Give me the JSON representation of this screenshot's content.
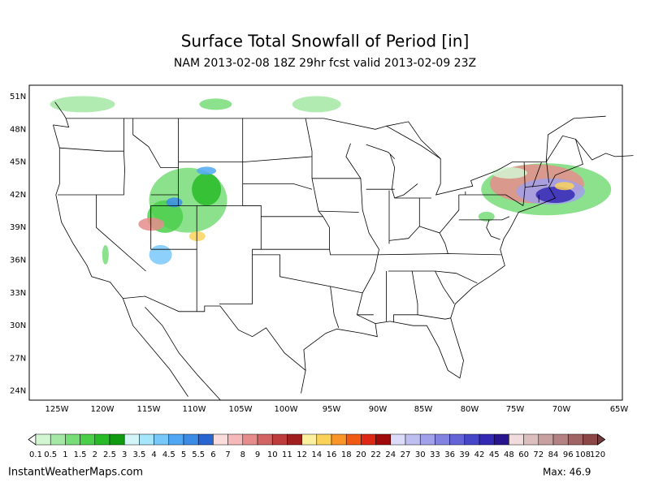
{
  "header": {
    "title": "Surface Total Snowfall of Period [in]",
    "subtitle": "NAM 2013-02-08 18Z 29hr fcst valid 2013-02-09 23Z"
  },
  "map": {
    "lat_labels": [
      "51N",
      "48N",
      "45N",
      "42N",
      "39N",
      "36N",
      "33N",
      "30N",
      "27N",
      "24N"
    ],
    "lon_labels": [
      "125W",
      "120W",
      "115W",
      "110W",
      "105W",
      "100W",
      "95W",
      "90W",
      "85W",
      "80W",
      "75W",
      "70W",
      "65W"
    ]
  },
  "colorbar": {
    "labels": [
      0.1,
      0.5,
      1,
      1.5,
      2,
      2.5,
      3,
      3.5,
      4,
      4.5,
      5,
      5.5,
      6,
      7,
      8,
      9,
      10,
      11,
      12,
      14,
      16,
      18,
      20,
      22,
      24,
      27,
      30,
      33,
      36,
      39,
      42,
      45,
      48,
      60,
      72,
      84,
      96,
      108,
      120
    ],
    "colors": [
      "#d2f5d2",
      "#a5e8a5",
      "#78dc78",
      "#4bcf4b",
      "#28bb28",
      "#109a10",
      "#d2f5fa",
      "#a6e6fa",
      "#78c8fa",
      "#50a8f5",
      "#3c8ce6",
      "#2864d2",
      "#fadcdc",
      "#f5b9b9",
      "#e68c8c",
      "#d26464",
      "#be3c3c",
      "#a01e1e",
      "#faf0a0",
      "#fad25a",
      "#fa9628",
      "#f05a14",
      "#dc2814",
      "#a00a0a",
      "#dcdcfa",
      "#bebef0",
      "#a0a0eb",
      "#8282e1",
      "#6464d7",
      "#4646c8",
      "#3228b4",
      "#28148c",
      "#f0dcdc",
      "#dcbebe",
      "#c8a0a0",
      "#b48282",
      "#a06464",
      "#8c4646"
    ]
  },
  "footer": {
    "site": "InstantWeatherMaps.com",
    "max": "Max:  46.9"
  }
}
